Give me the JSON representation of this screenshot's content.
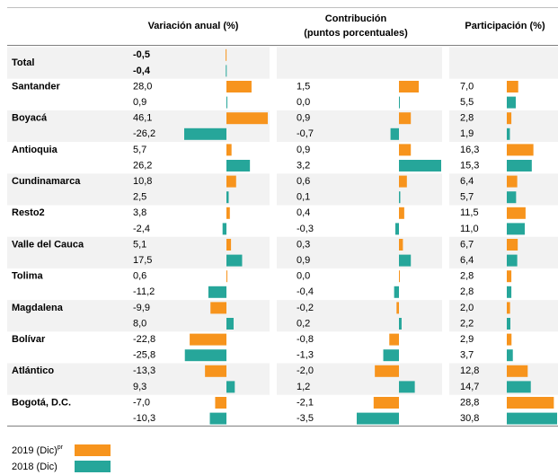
{
  "columns": {
    "variation": "Variación anual (%)",
    "contribution": [
      "Contribución",
      "(puntos porcentuales)"
    ],
    "share": "Participación (%)"
  },
  "series": [
    {
      "name": "2019 (Dic)",
      "superscript": "pr",
      "color": "#f7941d"
    },
    {
      "name": "2018 (Dic)",
      "color": "#26a69a"
    }
  ],
  "rows": [
    {
      "name": "Total",
      "variation": {
        "values": [
          -0.5,
          -0.4
        ],
        "value_labels": [
          "-0,5",
          "-0,4"
        ]
      }
    },
    {
      "name": "Santander",
      "variation": {
        "values": [
          28.0,
          0.9
        ],
        "value_labels": [
          "28,0",
          "0,9"
        ]
      },
      "contribution": {
        "values": [
          1.5,
          0.0
        ],
        "value_labels": [
          "1,5",
          "0,0"
        ]
      },
      "share": {
        "values": [
          7.0,
          5.5
        ],
        "value_labels": [
          "7,0",
          "5,5"
        ]
      }
    },
    {
      "name": "Boyacá",
      "variation": {
        "values": [
          46.1,
          -26.2
        ],
        "value_labels": [
          "46,1",
          "-26,2"
        ]
      },
      "contribution": {
        "values": [
          0.9,
          -0.7
        ],
        "value_labels": [
          "0,9",
          "-0,7"
        ]
      },
      "share": {
        "values": [
          2.8,
          1.9
        ],
        "value_labels": [
          "2,8",
          "1,9"
        ]
      }
    },
    {
      "name": "Antioquia",
      "variation": {
        "values": [
          5.7,
          26.2
        ],
        "value_labels": [
          "5,7",
          "26,2"
        ]
      },
      "contribution": {
        "values": [
          0.9,
          3.2
        ],
        "value_labels": [
          "0,9",
          "3,2"
        ]
      },
      "share": {
        "values": [
          16.3,
          15.3
        ],
        "value_labels": [
          "16,3",
          "15,3"
        ]
      }
    },
    {
      "name": "Cundinamarca",
      "variation": {
        "values": [
          10.8,
          2.5
        ],
        "value_labels": [
          "10,8",
          "2,5"
        ]
      },
      "contribution": {
        "values": [
          0.6,
          0.1
        ],
        "value_labels": [
          "0,6",
          "0,1"
        ]
      },
      "share": {
        "values": [
          6.4,
          5.7
        ],
        "value_labels": [
          "6,4",
          "5,7"
        ]
      }
    },
    {
      "name": "Resto2",
      "variation": {
        "values": [
          3.8,
          -2.4
        ],
        "value_labels": [
          "3,8",
          "-2,4"
        ]
      },
      "contribution": {
        "values": [
          0.4,
          -0.3
        ],
        "value_labels": [
          "0,4",
          "-0,3"
        ]
      },
      "share": {
        "values": [
          11.5,
          11.0
        ],
        "value_labels": [
          "11,5",
          "11,0"
        ]
      }
    },
    {
      "name": "Valle del Cauca",
      "variation": {
        "values": [
          5.1,
          17.5
        ],
        "value_labels": [
          "5,1",
          "17,5"
        ]
      },
      "contribution": {
        "values": [
          0.3,
          0.9
        ],
        "value_labels": [
          "0,3",
          "0,9"
        ]
      },
      "share": {
        "values": [
          6.7,
          6.4
        ],
        "value_labels": [
          "6,7",
          "6,4"
        ]
      }
    },
    {
      "name": "Tolima",
      "variation": {
        "values": [
          0.6,
          -11.2
        ],
        "value_labels": [
          "0,6",
          "-11,2"
        ]
      },
      "contribution": {
        "values": [
          0.0,
          -0.4
        ],
        "value_labels": [
          "0,0",
          "-0,4"
        ]
      },
      "share": {
        "values": [
          2.8,
          2.8
        ],
        "value_labels": [
          "2,8",
          "2,8"
        ]
      }
    },
    {
      "name": "Magdalena",
      "variation": {
        "values": [
          -9.9,
          8.0
        ],
        "value_labels": [
          "-9,9",
          "8,0"
        ]
      },
      "contribution": {
        "values": [
          -0.2,
          0.2
        ],
        "value_labels": [
          "-0,2",
          "0,2"
        ]
      },
      "share": {
        "values": [
          2.0,
          2.2
        ],
        "value_labels": [
          "2,0",
          "2,2"
        ]
      }
    },
    {
      "name": "Bolívar",
      "variation": {
        "values": [
          -22.8,
          -25.8
        ],
        "value_labels": [
          "-22,8",
          "-25,8"
        ]
      },
      "contribution": {
        "values": [
          -0.8,
          -1.3
        ],
        "value_labels": [
          "-0,8",
          "-1,3"
        ]
      },
      "share": {
        "values": [
          2.9,
          3.7
        ],
        "value_labels": [
          "2,9",
          "3,7"
        ]
      }
    },
    {
      "name": "Atlántico",
      "variation": {
        "values": [
          -13.3,
          9.3
        ],
        "value_labels": [
          "-13,3",
          "9,3"
        ]
      },
      "contribution": {
        "values": [
          -2.0,
          1.2
        ],
        "value_labels": [
          "-2,0",
          "1,2"
        ]
      },
      "share": {
        "values": [
          12.8,
          14.7
        ],
        "value_labels": [
          "12,8",
          "14,7"
        ]
      }
    },
    {
      "name": "Bogotá, D.C.",
      "variation": {
        "values": [
          -7.0,
          -10.3
        ],
        "value_labels": [
          "-7,0",
          "-10,3"
        ]
      },
      "contribution": {
        "values": [
          -2.1,
          -3.5
        ],
        "value_labels": [
          "-2,1",
          "-3,5"
        ]
      },
      "share": {
        "values": [
          28.8,
          30.8
        ],
        "value_labels": [
          "28,8",
          "30,8"
        ]
      }
    }
  ]
}
